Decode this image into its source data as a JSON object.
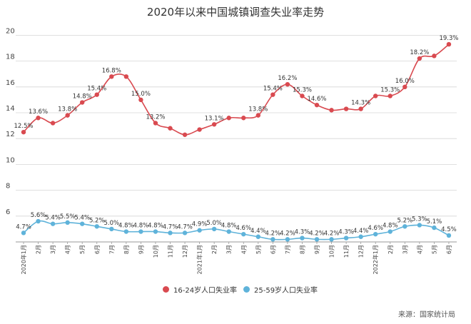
{
  "chart_data": {
    "type": "line",
    "title": "2020年以来中国城镇调查失业率走势",
    "xlabel": "",
    "ylabel": "",
    "ylim": [
      4,
      21
    ],
    "yticks": [
      4,
      6,
      8,
      10,
      12,
      14,
      16,
      18,
      20
    ],
    "grid": true,
    "legend_position": "bottom-center",
    "categories": [
      "2020年1月",
      "2月",
      "3月",
      "4月",
      "5月",
      "6月",
      "7月",
      "8月",
      "9月",
      "10月",
      "11月",
      "12月",
      "2021年1月",
      "2月",
      "3月",
      "4月",
      "5月",
      "6月",
      "7月",
      "8月",
      "9月",
      "10月",
      "11月",
      "12月",
      "2022年1月",
      "2月",
      "3月",
      "4月",
      "5月",
      "6月"
    ],
    "series": [
      {
        "name": "16-24岁人口失业率",
        "color": "#d94a50",
        "values": [
          12.5,
          13.6,
          13.2,
          13.8,
          14.8,
          15.4,
          16.8,
          16.8,
          15.0,
          13.2,
          12.8,
          12.3,
          12.7,
          13.1,
          13.6,
          13.6,
          13.8,
          15.4,
          16.2,
          15.3,
          14.6,
          14.2,
          14.3,
          14.3,
          15.3,
          15.3,
          16.0,
          18.2,
          18.4,
          19.3
        ],
        "labels": [
          "12.5%",
          "13.6%",
          "",
          "13.8%",
          "14.8%",
          "15.4%",
          "16.8%",
          "",
          "15.0%",
          "13.2%",
          "",
          "",
          "",
          "13.1%",
          "",
          "",
          "13.8%",
          "15.4%",
          "16.2%",
          "15.3%",
          "14.6%",
          "",
          "",
          "14.3%",
          "",
          "15.3%",
          "16.0%",
          "18.2%",
          "",
          "19.3%"
        ]
      },
      {
        "name": "25-59岁人口失业率",
        "color": "#5fb3da",
        "values": [
          4.7,
          5.6,
          5.4,
          5.5,
          5.4,
          5.2,
          5.0,
          4.8,
          4.8,
          4.8,
          4.7,
          4.7,
          4.9,
          5.0,
          4.8,
          4.6,
          4.4,
          4.2,
          4.2,
          4.3,
          4.2,
          4.2,
          4.3,
          4.4,
          4.6,
          4.8,
          5.2,
          5.3,
          5.1,
          4.5
        ],
        "labels": [
          "4.7%",
          "5.6%",
          "5.4%",
          "5.5%",
          "5.4%",
          "5.2%",
          "5.0%",
          "4.8%",
          "4.8%",
          "4.8%",
          "4.7%",
          "4.7%",
          "4.9%",
          "5.0%",
          "4.8%",
          "4.6%",
          "4.4%",
          "4.2%",
          "4.2%",
          "4.3%",
          "4.2%",
          "4.2%",
          "4.3%",
          "4.4%",
          "4.6%",
          "4.8%",
          "5.2%",
          "5.3%",
          "5.1%",
          "4.5%"
        ]
      }
    ],
    "legend": [
      "16-24岁人口失业率",
      "25-59岁人口失业率"
    ],
    "source": "来源：国家统计局"
  }
}
